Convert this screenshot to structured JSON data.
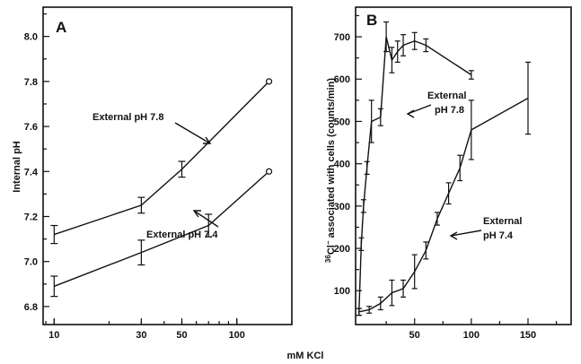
{
  "chart_data": [
    {
      "type": "line",
      "panel_label": "A",
      "ylabel": "Internal pH",
      "x_scale": "log",
      "x_ticks": [
        "10",
        "30",
        "50",
        "100"
      ],
      "y_ticks": [
        "6.8",
        "7.0",
        "7.2",
        "7.4",
        "7.6",
        "7.8",
        "8.0"
      ],
      "xlim": [
        8.7,
        200
      ],
      "ylim": [
        6.72,
        8.13
      ],
      "series": [
        {
          "name": "External pH 7.8",
          "points": [
            {
              "x": 10,
              "y": 7.12,
              "err": 0.04
            },
            {
              "x": 30,
              "y": 7.25,
              "err": 0.035
            },
            {
              "x": 50,
              "y": 7.41,
              "err": 0.035
            },
            {
              "x": 150,
              "y": 7.8,
              "err": 0,
              "open": true
            }
          ]
        },
        {
          "name": "External pH 7.4",
          "points": [
            {
              "x": 10,
              "y": 6.89,
              "err": 0.045
            },
            {
              "x": 30,
              "y": 7.04,
              "err": 0.055
            },
            {
              "x": 70,
              "y": 7.16,
              "err": 0.05
            },
            {
              "x": 150,
              "y": 7.4,
              "err": 0,
              "open": true
            }
          ]
        }
      ],
      "annotations": [
        {
          "text": "External pH 7.8",
          "series": 0
        },
        {
          "text": "External pH 7.4",
          "series": 1
        }
      ]
    },
    {
      "type": "line",
      "panel_label": "B",
      "ylabel_prefix": "36",
      "ylabel_main": "Cl",
      "ylabel_suffix": "−",
      "ylabel_rest": " associated  with  cells  (counts/min)",
      "x_ticks": [
        50,
        100,
        150
      ],
      "y_ticks": [
        100,
        200,
        300,
        400,
        500,
        600,
        700
      ],
      "xlim": [
        -2,
        188
      ],
      "ylim": [
        20,
        770
      ],
      "series": [
        {
          "name": "External pH 7.8",
          "points": [
            {
              "x": 1,
              "y": 50,
              "err": 8
            },
            {
              "x": 3,
              "y": 210,
              "err": 15
            },
            {
              "x": 5,
              "y": 300,
              "err": 15
            },
            {
              "x": 8,
              "y": 390,
              "err": 15
            },
            {
              "x": 12,
              "y": 500,
              "err": 50
            },
            {
              "x": 20,
              "y": 510,
              "err": 20
            },
            {
              "x": 25,
              "y": 700,
              "err": 35
            },
            {
              "x": 30,
              "y": 645,
              "err": 30
            },
            {
              "x": 35,
              "y": 665,
              "err": 25
            },
            {
              "x": 40,
              "y": 680,
              "err": 25
            },
            {
              "x": 50,
              "y": 690,
              "err": 20
            },
            {
              "x": 60,
              "y": 680,
              "err": 15
            },
            {
              "x": 100,
              "y": 610,
              "err": 10
            }
          ]
        },
        {
          "name": "External pH 7.4",
          "points": [
            {
              "x": 1,
              "y": 50,
              "err": 8
            },
            {
              "x": 10,
              "y": 55,
              "err": 8
            },
            {
              "x": 20,
              "y": 70,
              "err": 15
            },
            {
              "x": 30,
              "y": 95,
              "err": 30
            },
            {
              "x": 40,
              "y": 105,
              "err": 20
            },
            {
              "x": 50,
              "y": 145,
              "err": 40
            },
            {
              "x": 60,
              "y": 195,
              "err": 20
            },
            {
              "x": 70,
              "y": 270,
              "err": 15
            },
            {
              "x": 80,
              "y": 330,
              "err": 25
            },
            {
              "x": 90,
              "y": 390,
              "err": 30
            },
            {
              "x": 100,
              "y": 480,
              "err": 70
            },
            {
              "x": 150,
              "y": 555,
              "err": 85
            }
          ]
        }
      ],
      "annotations": [
        {
          "line1": "External",
          "line2": "pH 7.8",
          "series": 0
        },
        {
          "line1": "External",
          "line2": "pH 7.4",
          "series": 1
        }
      ]
    }
  ],
  "shared_xlabel": "mM  KCl"
}
